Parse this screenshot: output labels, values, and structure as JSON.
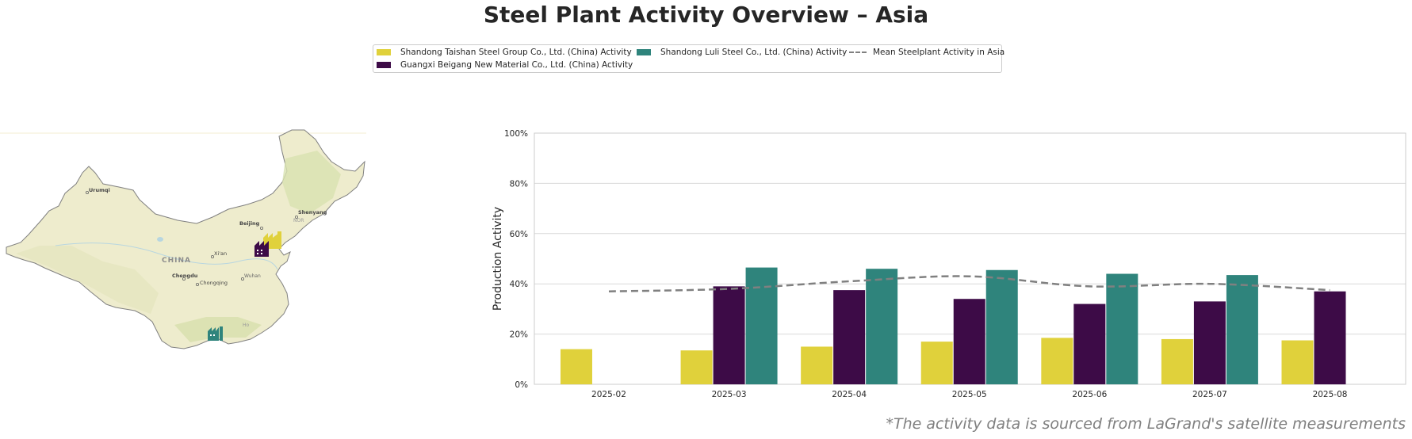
{
  "title": "Steel Plant Activity Overview – Asia",
  "legend": {
    "items": [
      {
        "label": "Shandong Taishan Steel Group Co., Ltd. (China) Activity",
        "color": "#e0d13b",
        "kind": "bar"
      },
      {
        "label": "Guangxi Beigang New Material Co., Ltd. (China) Activity",
        "color": "#3d0b47",
        "kind": "bar"
      },
      {
        "label": "Shandong Luli Steel Co., Ltd. (China) Activity",
        "color": "#2f847c",
        "kind": "bar"
      },
      {
        "label": "Mean Steelplant Activity in Asia",
        "color": "#808080",
        "kind": "dashed-line"
      }
    ]
  },
  "map": {
    "country_label": "CHINA",
    "cities": [
      "Urumqi",
      "Beijing",
      "Shenyang",
      "Xi'an",
      "Chengdu",
      "Chongqing",
      "Wuhan"
    ],
    "faded_labels": [
      "NOR",
      "Ho"
    ]
  },
  "chart_data": {
    "type": "bar",
    "ylabel": "Production Activity",
    "xlabel": "",
    "ylim": [
      0,
      100
    ],
    "yticks": [
      "0%",
      "20%",
      "40%",
      "60%",
      "80%",
      "100%"
    ],
    "grid": true,
    "categories": [
      "2025-02",
      "2025-03",
      "2025-04",
      "2025-05",
      "2025-06",
      "2025-07",
      "2025-08"
    ],
    "series": [
      {
        "name": "Shandong Taishan Steel Group Co., Ltd. (China) Activity",
        "color": "#e0d13b",
        "values": [
          14,
          13.5,
          15,
          17,
          18.5,
          18,
          17.5
        ]
      },
      {
        "name": "Guangxi Beigang New Material Co., Ltd. (China) Activity",
        "color": "#3d0b47",
        "values": [
          null,
          39,
          37.5,
          34,
          32,
          33,
          37
        ]
      },
      {
        "name": "Shandong Luli Steel Co., Ltd. (China) Activity",
        "color": "#2f847c",
        "values": [
          null,
          46.5,
          46,
          45.5,
          44,
          43.5,
          null
        ]
      }
    ],
    "line": {
      "name": "Mean Steelplant Activity in Asia",
      "color": "#808080",
      "values": [
        37,
        38,
        41,
        43,
        39,
        40,
        37.5
      ]
    }
  },
  "source_note": "*The activity data is sourced from LaGrand's satellite measurements"
}
